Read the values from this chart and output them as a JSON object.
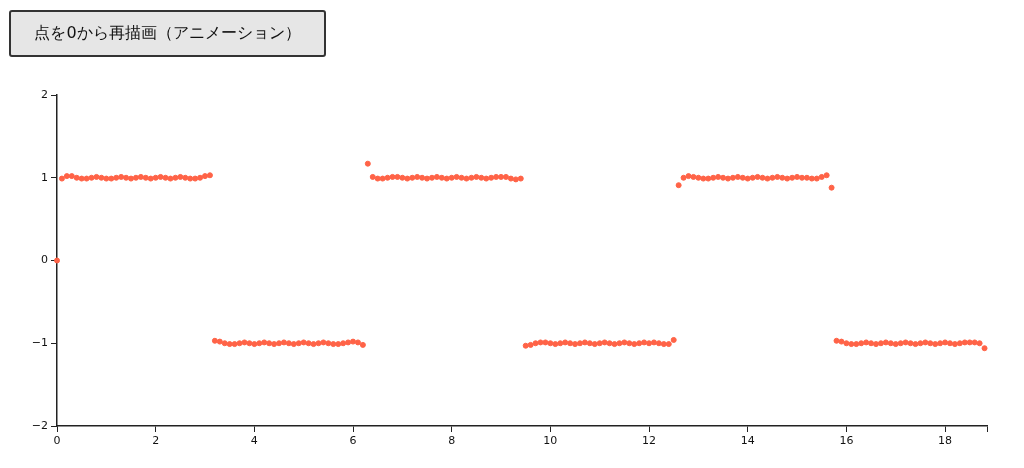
{
  "chart_data": {
    "type": "scatter",
    "annotations": [
      "点を0から再描画（アニメーション）"
    ],
    "x": [
      0,
      0.1,
      0.2,
      0.3,
      0.4,
      0.5,
      0.6,
      0.7,
      0.8,
      0.9,
      1,
      1.1,
      1.2,
      1.3,
      1.4,
      1.5,
      1.6,
      1.7,
      1.8,
      1.9,
      2,
      2.1,
      2.2,
      2.3,
      2.4,
      2.5,
      2.6,
      2.7,
      2.8,
      2.9,
      3,
      3.1,
      3.2,
      3.3,
      3.4,
      3.5,
      3.6,
      3.7,
      3.8,
      3.9,
      4,
      4.1,
      4.2,
      4.3,
      4.4,
      4.5,
      4.6,
      4.7,
      4.8,
      4.9,
      5,
      5.1,
      5.2,
      5.3,
      5.4,
      5.5,
      5.6,
      5.7,
      5.8,
      5.9,
      6,
      6.1,
      6.2,
      6.3,
      6.4,
      6.5,
      6.6,
      6.7,
      6.8,
      6.9,
      7,
      7.1,
      7.2,
      7.3,
      7.4,
      7.5,
      7.6,
      7.7,
      7.8,
      7.9,
      8,
      8.1,
      8.2,
      8.3,
      8.4,
      8.5,
      8.6,
      8.7,
      8.8,
      8.9,
      9,
      9.1,
      9.2,
      9.3,
      9.4,
      9.5,
      9.6,
      9.7,
      9.8,
      9.9,
      10,
      10.1,
      10.2,
      10.3,
      10.4,
      10.5,
      10.6,
      10.7,
      10.8,
      10.9,
      11,
      11.1,
      11.2,
      11.3,
      11.4,
      11.5,
      11.6,
      11.7,
      11.8,
      11.9,
      12,
      12.1,
      12.2,
      12.3,
      12.4,
      12.5,
      12.6,
      12.7,
      12.8,
      12.9,
      13,
      13.1,
      13.2,
      13.3,
      13.4,
      13.5,
      13.6,
      13.7,
      13.8,
      13.9,
      14,
      14.1,
      14.2,
      14.3,
      14.4,
      14.5,
      14.6,
      14.7,
      14.8,
      14.9,
      15,
      15.1,
      15.2,
      15.3,
      15.4,
      15.5,
      15.6,
      15.7,
      15.8,
      15.9,
      16,
      16.1,
      16.2,
      16.3,
      16.4,
      16.5,
      16.6,
      16.7,
      16.8,
      16.9,
      17,
      17.1,
      17.2,
      17.3,
      17.4,
      17.5,
      17.6,
      17.7,
      17.8,
      17.9,
      18,
      18.1,
      18.2,
      18.3,
      18.4,
      18.5,
      18.6,
      18.7,
      18.8
    ],
    "values": [
      0,
      0.99,
      1.02,
      1.02,
      1,
      0.99,
      0.99,
      1,
      1.01,
      1,
      0.99,
      0.99,
      1,
      1.01,
      1,
      0.99,
      1,
      1.01,
      1,
      0.99,
      1,
      1.01,
      1,
      0.99,
      1,
      1.01,
      1,
      0.99,
      0.99,
      1,
      1.02,
      1.03,
      -0.97,
      -0.98,
      -1,
      -1.01,
      -1.01,
      -1,
      -0.99,
      -1,
      -1.01,
      -1,
      -0.99,
      -1,
      -1.01,
      -1,
      -0.99,
      -1,
      -1.01,
      -1,
      -0.99,
      -1,
      -1.01,
      -1,
      -0.99,
      -1,
      -1.01,
      -1.01,
      -1,
      -0.99,
      -0.98,
      -0.99,
      -1.02,
      1.17,
      1.01,
      0.99,
      0.99,
      1,
      1.01,
      1.01,
      1,
      0.99,
      1,
      1.01,
      1,
      0.99,
      1,
      1.01,
      1,
      0.99,
      1,
      1.01,
      1,
      0.99,
      1,
      1.01,
      1,
      0.99,
      1,
      1.01,
      1.01,
      1.01,
      0.99,
      0.98,
      0.99,
      -1.03,
      -1.02,
      -1,
      -0.99,
      -0.99,
      -1,
      -1.01,
      -1,
      -0.99,
      -1,
      -1.01,
      -1,
      -0.99,
      -1,
      -1.01,
      -1,
      -0.99,
      -1,
      -1.01,
      -1,
      -0.99,
      -1,
      -1.01,
      -1,
      -0.99,
      -1,
      -0.99,
      -1,
      -1.01,
      -1.01,
      -0.96,
      0.91,
      1,
      1.02,
      1.01,
      1,
      0.99,
      0.99,
      1,
      1.01,
      1,
      0.99,
      1,
      1.01,
      1,
      0.99,
      1,
      1.01,
      1,
      0.99,
      1,
      1.01,
      1,
      0.99,
      1,
      1.01,
      1,
      1,
      0.99,
      0.99,
      1.01,
      1.03,
      0.88,
      -0.97,
      -0.98,
      -1,
      -1.01,
      -1.01,
      -1,
      -0.99,
      -1,
      -1.01,
      -1,
      -0.99,
      -1,
      -1.01,
      -1,
      -0.99,
      -1,
      -1.01,
      -1,
      -0.99,
      -1,
      -1.01,
      -1,
      -0.99,
      -1,
      -1.01,
      -1,
      -0.99,
      -0.99,
      -0.99,
      -1,
      -1.06
    ],
    "color": "#ff6347",
    "marker": "circle",
    "xlim": [
      0,
      18.85
    ],
    "xticks": [
      0,
      2,
      4,
      6,
      8,
      10,
      12,
      14,
      16,
      18,
      {
        "value": 18.85,
        "label": null
      }
    ],
    "ylim": [
      -2,
      2
    ],
    "yticks": [
      {
        "value": -2,
        "label": "−2"
      },
      {
        "value": -1,
        "label": "−1"
      },
      0,
      1,
      2
    ],
    "grid": false,
    "legend": false
  }
}
